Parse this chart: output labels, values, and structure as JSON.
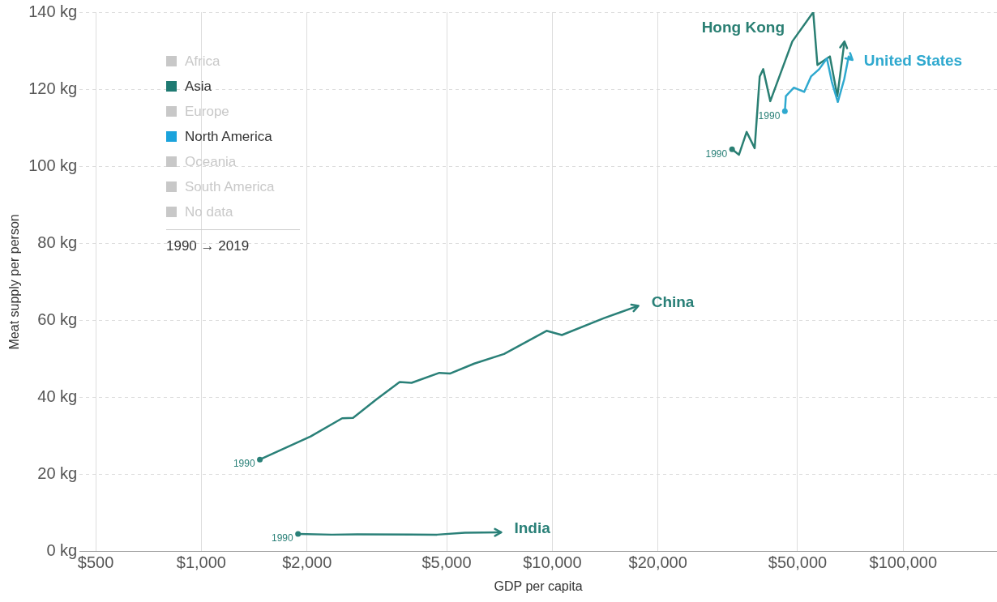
{
  "chart_data": {
    "type": "line",
    "xlabel": "GDP per capita",
    "ylabel": "Meat supply per person",
    "log": "x",
    "grid": true,
    "legend": "top left",
    "marker": "none",
    "line_style": "solid",
    "xlim": [
      450,
      185000
    ],
    "xticks": [
      {
        "value": 500,
        "label": "$500"
      },
      {
        "value": 1000,
        "label": "$1,000"
      },
      {
        "value": 2000,
        "label": "$2,000"
      },
      {
        "value": 5000,
        "label": "$5,000"
      },
      {
        "value": 10000,
        "label": "$10,000"
      },
      {
        "value": 20000,
        "label": "$20,000"
      },
      {
        "value": 50000,
        "label": "$50,000"
      },
      {
        "value": 100000,
        "label": "$100,000"
      }
    ],
    "ylim": [
      0,
      140
    ],
    "yticks": [
      {
        "value": 0,
        "label": "0 kg"
      },
      {
        "value": 20,
        "label": "20 kg"
      },
      {
        "value": 40,
        "label": "40 kg"
      },
      {
        "value": 60,
        "label": "60 kg"
      },
      {
        "value": 80,
        "label": "80 kg"
      },
      {
        "value": 100,
        "label": "100 kg"
      },
      {
        "value": 120,
        "label": "120 kg"
      },
      {
        "value": 140,
        "label": "140 kg"
      }
    ],
    "series": [
      {
        "name": "Africa",
        "color": "#c8c8c8"
      },
      {
        "name": "Asia",
        "color": "#1f7a72"
      },
      {
        "name": "Europe",
        "color": "#c8c8c8"
      },
      {
        "name": "North America",
        "color": "#1ba3dc"
      },
      {
        "name": "Oceania",
        "color": "#c8c8c8"
      },
      {
        "name": "South America",
        "color": "#c8c8c8"
      },
      {
        "name": "No data",
        "color": "#c8c8c8"
      },
      {
        "name": "China",
        "color": "#2a8078",
        "x": [
          1468,
          2049,
          2519,
          2706,
          3163,
          3673,
          3972,
          4768,
          5106,
          5993,
          7288,
          9632,
          10650,
          14040,
          17600
        ],
        "values": [
          23.9,
          29.9,
          34.6,
          34.7,
          39.6,
          44.0,
          43.8,
          46.4,
          46.2,
          48.8,
          51.3,
          57.3,
          56.2,
          60.6,
          63.8
        ]
      },
      {
        "name": "India",
        "color": "#2a8078",
        "x": [
          1886,
          2354,
          2782,
          4693,
          5637,
          7158
        ],
        "values": [
          4.6,
          4.4,
          4.5,
          4.4,
          4.9,
          5.0
        ]
      },
      {
        "name": "United States",
        "color": "#2fa9cf",
        "x": [
          46000,
          46300,
          48800,
          52200,
          54600,
          57600,
          60600,
          62600,
          65100,
          67900,
          69900,
          71700
        ],
        "values": [
          114.3,
          118.2,
          120.4,
          119.3,
          123.3,
          125.2,
          128.0,
          121.9,
          116.7,
          122.6,
          128.5,
          127.6
        ]
      },
      {
        "name": "Hong Kong",
        "color": "#2a7f73",
        "x": [
          32530,
          34040,
          35790,
          37730,
          39000,
          39900,
          41800,
          48300,
          55400,
          56950,
          61800,
          64900,
          68000
        ],
        "values": [
          104.4,
          103.0,
          108.9,
          104.7,
          123.3,
          125.2,
          116.9,
          132.4,
          140,
          126.3,
          128.5,
          118.2,
          132.4
        ]
      }
    ],
    "annotations": [
      "1990 → 2019",
      {
        "text": "1990",
        "x": 1468,
        "y": 23.9
      },
      {
        "text": "1990",
        "x": 1886,
        "y": 4.6
      },
      {
        "text": "1990",
        "x": 32530,
        "y": 104.4
      },
      {
        "text": "1990",
        "x": 46000,
        "y": 114.3
      }
    ]
  }
}
